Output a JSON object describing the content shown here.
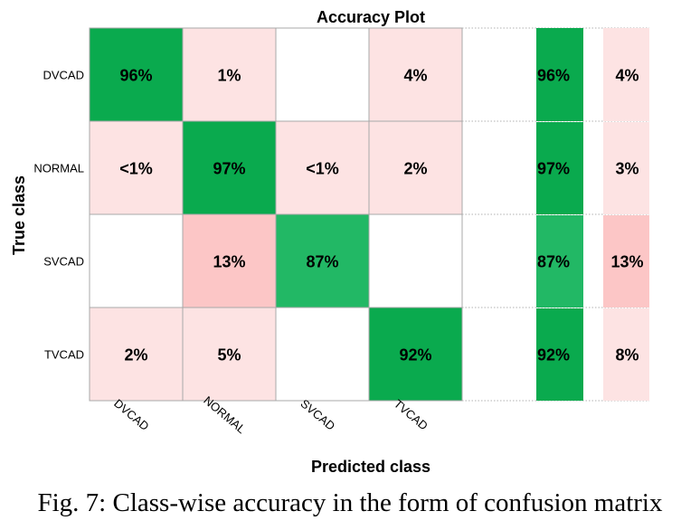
{
  "chart_data": {
    "type": "heatmap",
    "title": "Accuracy Plot",
    "xlabel": "Predicted class",
    "ylabel": "True class",
    "rows": [
      "DVCAD",
      "NORMAL",
      "SVCAD",
      "TVCAD"
    ],
    "columns": [
      "DVCAD",
      "NORMAL",
      "SVCAD",
      "TVCAD"
    ],
    "cells": [
      [
        "96%",
        "1%",
        "",
        "4%"
      ],
      [
        "<1%",
        "97%",
        "<1%",
        "2%"
      ],
      [
        "",
        "13%",
        "87%",
        ""
      ],
      [
        "2%",
        "5%",
        "",
        "92%"
      ]
    ],
    "values": [
      [
        96,
        1,
        0,
        4
      ],
      [
        0.5,
        97,
        0.5,
        2
      ],
      [
        0,
        13,
        87,
        0
      ],
      [
        2,
        5,
        0,
        92
      ]
    ],
    "row_summary": {
      "correct": [
        "96%",
        "97%",
        "87%",
        "92%"
      ],
      "incorrect": [
        "4%",
        "3%",
        "13%",
        "8%"
      ],
      "correct_values": [
        96,
        97,
        87,
        92
      ],
      "incorrect_values": [
        4,
        3,
        13,
        8
      ]
    },
    "colors": {
      "diag_strong": "#0aaa4e",
      "diag_mid": "#22b865",
      "off_light": "#fde3e3",
      "off_mid": "#fcc6c6",
      "empty": "#ffffff",
      "grid": "#a8a8a8"
    }
  },
  "caption": "Fig. 7: Class-wise accuracy in the form of confusion matrix"
}
